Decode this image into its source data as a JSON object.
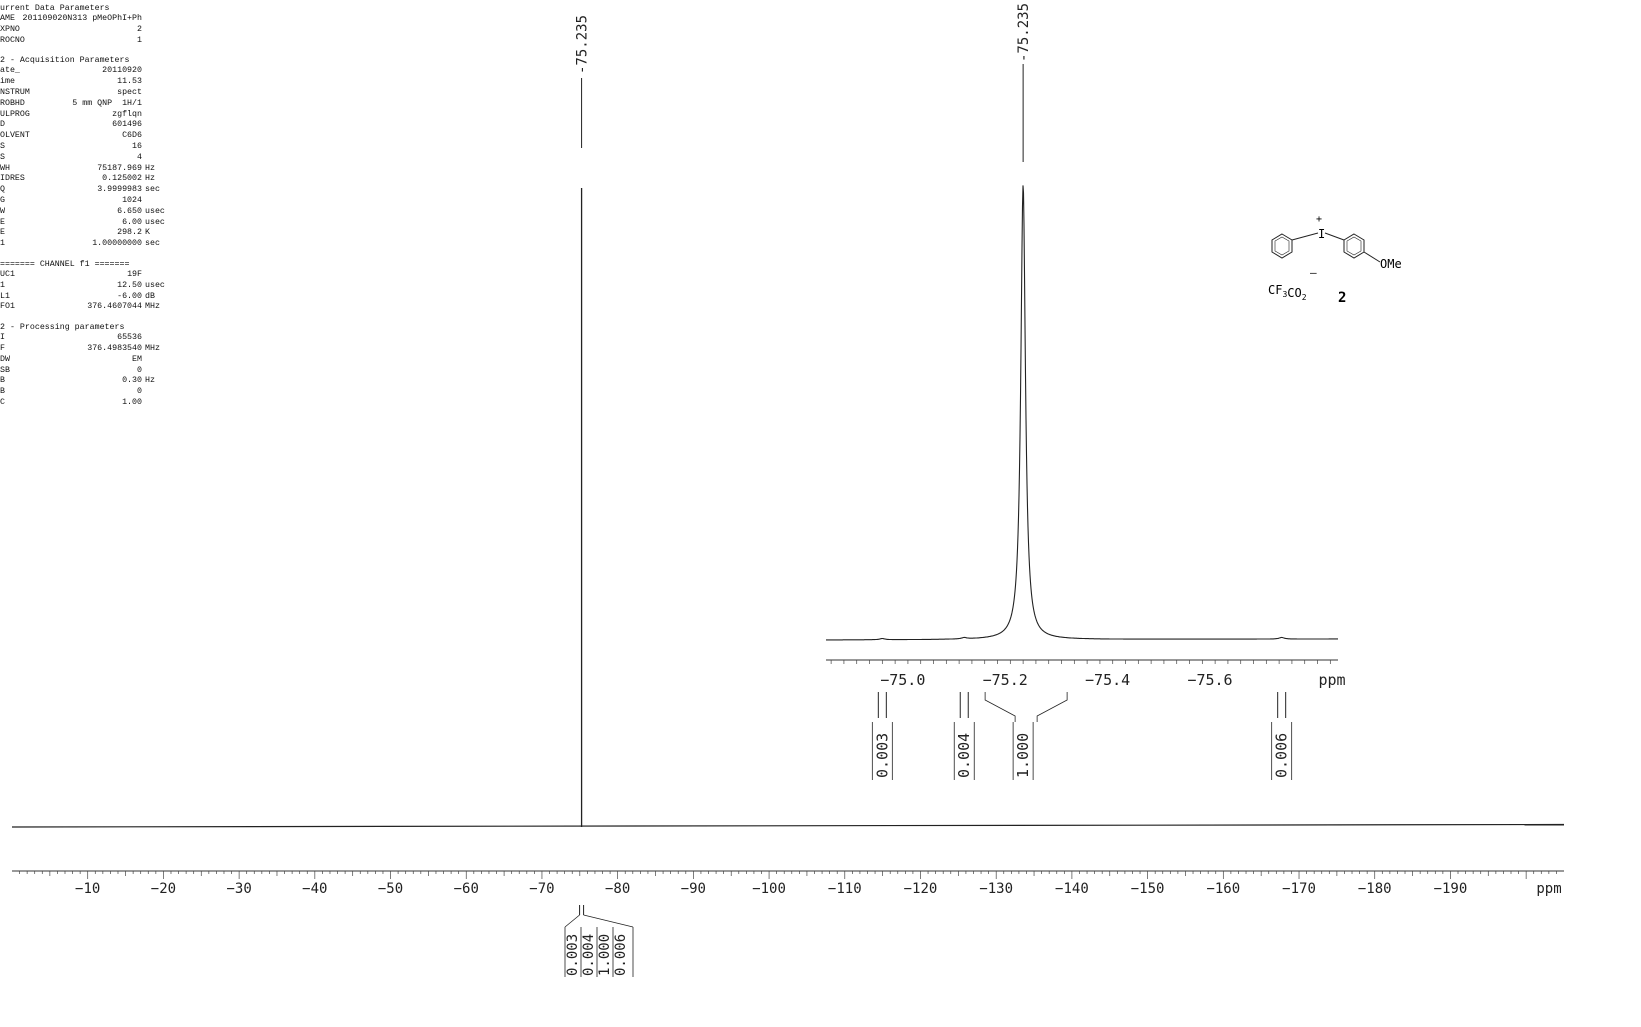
{
  "params": {
    "current": {
      "title": "urrent Data Parameters",
      "rows": [
        {
          "label": "AME",
          "value": "201109020N313 pMeOPhI+Ph",
          "unit": ""
        },
        {
          "label": "XPNO",
          "value": "2",
          "unit": ""
        },
        {
          "label": "ROCNO",
          "value": "1",
          "unit": ""
        }
      ]
    },
    "acquisition": {
      "title": "2 - Acquisition Parameters",
      "rows": [
        {
          "label": "ate_",
          "value": "20110920",
          "unit": ""
        },
        {
          "label": "ime",
          "value": "11.53",
          "unit": ""
        },
        {
          "label": "NSTRUM",
          "value": "spect",
          "unit": ""
        },
        {
          "label": "ROBHD",
          "value": "5 mm QNP  1H/1",
          "unit": ""
        },
        {
          "label": "ULPROG",
          "value": "zgflqn",
          "unit": ""
        },
        {
          "label": "D",
          "value": "601496",
          "unit": ""
        },
        {
          "label": "OLVENT",
          "value": "C6D6",
          "unit": ""
        },
        {
          "label": "S",
          "value": "16",
          "unit": ""
        },
        {
          "label": "S",
          "value": "4",
          "unit": ""
        },
        {
          "label": "WH",
          "value": "75187.969",
          "unit": "Hz"
        },
        {
          "label": "IDRES",
          "value": "0.125002",
          "unit": "Hz"
        },
        {
          "label": "Q",
          "value": "3.9999983",
          "unit": "sec"
        },
        {
          "label": "G",
          "value": "1024",
          "unit": ""
        },
        {
          "label": "W",
          "value": "6.650",
          "unit": "usec"
        },
        {
          "label": "E",
          "value": "6.00",
          "unit": "usec"
        },
        {
          "label": "E",
          "value": "298.2",
          "unit": "K"
        },
        {
          "label": "1",
          "value": "1.00000000",
          "unit": "sec"
        }
      ]
    },
    "channel": {
      "title": "======= CHANNEL f1 =======",
      "rows": [
        {
          "label": "UC1",
          "value": "19F",
          "unit": ""
        },
        {
          "label": "1",
          "value": "12.50",
          "unit": "usec"
        },
        {
          "label": "L1",
          "value": "-6.00",
          "unit": "dB"
        },
        {
          "label": "FO1",
          "value": "376.4607044",
          "unit": "MHz"
        }
      ]
    },
    "processing": {
      "title": "2 - Processing parameters",
      "rows": [
        {
          "label": "I",
          "value": "65536",
          "unit": ""
        },
        {
          "label": "F",
          "value": "376.4983540",
          "unit": "MHz"
        },
        {
          "label": "DW",
          "value": "EM",
          "unit": ""
        },
        {
          "label": "SB",
          "value": "0",
          "unit": ""
        },
        {
          "label": "B",
          "value": "0.30",
          "unit": "Hz"
        },
        {
          "label": "B",
          "value": "0",
          "unit": ""
        },
        {
          "label": "C",
          "value": "1.00",
          "unit": ""
        }
      ]
    }
  },
  "structure": {
    "substituent": "OMe",
    "counter_ion": "CF3CO2",
    "compound_number": "2"
  },
  "chart_data": [
    {
      "type": "line",
      "name_hint": "main",
      "x_unit_label": "ppm",
      "xlim": [
        0,
        -205
      ],
      "x_ticks": [
        -10,
        -20,
        -30,
        -40,
        -50,
        -60,
        -70,
        -80,
        -90,
        -100,
        -110,
        -120,
        -130,
        -140,
        -150,
        -160,
        -170,
        -180,
        -190
      ],
      "peaks": [
        {
          "x": -75.235,
          "label": "-75.235"
        }
      ],
      "integrals": [
        "0.003",
        "0.004",
        "1.000",
        "0.006"
      ]
    },
    {
      "type": "line",
      "name_hint": "inset",
      "x_unit_label": "ppm",
      "xlim": [
        -74.85,
        -75.85
      ],
      "x_ticks": [
        -75.0,
        -75.2,
        -75.4,
        -75.6
      ],
      "x_tick_labels": [
        "-75.0",
        "-75.2",
        "-75.4",
        "-75.6"
      ],
      "peaks": [
        {
          "x": -75.235,
          "label": "-75.235"
        }
      ],
      "integrals": [
        {
          "value": "0.003",
          "x": -74.96
        },
        {
          "value": "0.004",
          "x": -75.12
        },
        {
          "value": "1.000",
          "x": -75.235
        },
        {
          "value": "0.006",
          "x": -75.74
        }
      ]
    }
  ]
}
